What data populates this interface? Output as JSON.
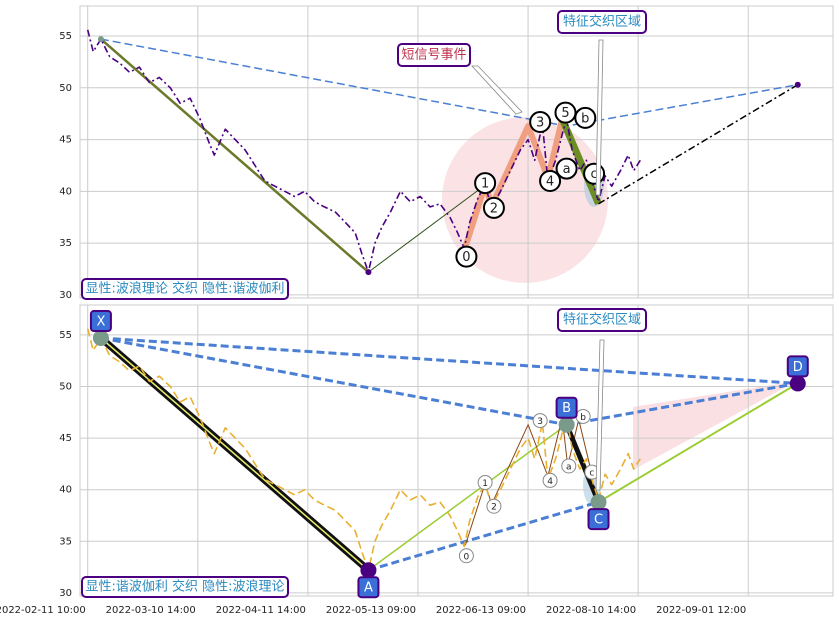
{
  "chart_data": [
    {
      "type": "line",
      "xlim": [
        -7,
        677
      ],
      "ylim": [
        29.7,
        57.9
      ],
      "yticks": [
        30,
        35,
        40,
        45,
        50,
        55
      ],
      "xticks": [
        0,
        100,
        200,
        300,
        400,
        500,
        600
      ],
      "grid": true,
      "series": [
        {
          "color": "#4b0082",
          "style": "dashdot",
          "x": [
            0,
            5,
            12,
            20,
            29,
            38,
            47,
            56,
            65,
            75,
            84,
            93,
            102,
            111,
            115,
            125,
            134,
            143,
            152,
            161,
            170,
            179,
            188,
            197,
            206,
            215,
            225,
            234,
            243,
            249,
            255,
            261,
            267,
            275,
            284,
            293,
            302,
            311,
            320,
            329,
            336,
            342,
            347,
            355,
            361,
            367,
            375,
            384,
            393,
            400,
            406,
            413,
            418,
            425,
            431,
            435,
            440,
            447,
            453,
            458,
            464,
            470,
            476,
            484,
            491,
            496,
            502
          ],
          "values": [
            55.6,
            53.5,
            54.7,
            53,
            52.4,
            51.5,
            52,
            50.5,
            51,
            50,
            48.5,
            49,
            47,
            44.5,
            43.5,
            46,
            45,
            44,
            42.5,
            41,
            40.5,
            40,
            39.5,
            40,
            39,
            38.5,
            38,
            37,
            36,
            34,
            32.2,
            35,
            36.5,
            38,
            40,
            39,
            39.5,
            38.5,
            38.8,
            37.5,
            36,
            34.5,
            37,
            39.5,
            40.5,
            38.5,
            40,
            42,
            44,
            45,
            43,
            46.5,
            41,
            43,
            45.5,
            47,
            44,
            42,
            43,
            41,
            39,
            41.5,
            40.5,
            42,
            43.5,
            42,
            43
          ]
        }
      ],
      "overlays": [
        {
          "color": "#4a7fd4",
          "width": 1.5,
          "style": "dash",
          "x": [
            12,
            435,
            645
          ],
          "y": [
            54.7,
            46.3,
            50.3
          ]
        },
        {
          "color": "#6b7a2a",
          "width": 2.5,
          "x": [
            12,
            255
          ],
          "y": [
            54.7,
            32.2
          ]
        },
        {
          "color": "#2d5016",
          "width": 1,
          "x": [
            255,
            361
          ],
          "y": [
            32.2,
            40.6
          ]
        },
        {
          "color": "#f0a080",
          "width": 6,
          "x": [
            343,
            361,
            367,
            400,
            418,
            431
          ],
          "y": [
            34.6,
            40.6,
            38.6,
            46.3,
            41.3,
            47.0
          ]
        },
        {
          "color": "#6b8e23",
          "width": 7,
          "x": [
            431,
            464
          ],
          "y": [
            47.0,
            38.8
          ]
        },
        {
          "color": "#000000",
          "width": 1.5,
          "style": "dashdot",
          "x": [
            464,
            645
          ],
          "y": [
            38.8,
            50.3
          ]
        }
      ],
      "points": [
        {
          "x": 12,
          "y": 54.7,
          "color": "#7a9a8a"
        },
        {
          "x": 255,
          "y": 32.2,
          "color": "#4b0082"
        },
        {
          "x": 645,
          "y": 50.3,
          "color": "#4b0082"
        }
      ],
      "pivots": [
        {
          "label": "0",
          "x": 344,
          "y": 33.7
        },
        {
          "label": "1",
          "x": 361,
          "y": 40.8
        },
        {
          "label": "2",
          "x": 369,
          "y": 38.4
        },
        {
          "label": "3",
          "x": 411,
          "y": 46.7
        },
        {
          "label": "4",
          "x": 420,
          "y": 41.0
        },
        {
          "label": "5",
          "x": 434,
          "y": 47.6
        },
        {
          "label": "a",
          "x": 435,
          "y": 42.2
        },
        {
          "label": "b",
          "x": 452,
          "y": 47.1
        },
        {
          "label": "c",
          "x": 460,
          "y": 41.7
        }
      ],
      "annotations": [
        "短信号事件",
        "特征交织区域",
        "显性:波浪理论 交织 隐性:谐波伽利"
      ]
    },
    {
      "type": "line",
      "xlim": [
        -7,
        677
      ],
      "ylim": [
        29.7,
        57.9
      ],
      "yticks": [
        30,
        35,
        40,
        45,
        50,
        55
      ],
      "xticks": [
        {
          "value": 0,
          "label": "2022-02-11 10:00"
        },
        {
          "value": 100,
          "label": "2022-03-10 14:00"
        },
        {
          "value": 200,
          "label": "2022-04-11 14:00"
        },
        {
          "value": 300,
          "label": "2022-05-13 09:00"
        },
        {
          "value": 400,
          "label": "2022-06-13 09:00"
        },
        {
          "value": 500,
          "label": "2022-08-10 14:00"
        },
        {
          "value": 600,
          "label": "2022-09-01 12:00"
        }
      ],
      "grid": true,
      "series": [
        {
          "color": "#e8b030",
          "style": "dash",
          "x": [
            0,
            5,
            12,
            20,
            29,
            38,
            47,
            56,
            65,
            75,
            84,
            93,
            102,
            111,
            115,
            125,
            134,
            143,
            152,
            161,
            170,
            179,
            188,
            197,
            206,
            215,
            225,
            234,
            243,
            249,
            255,
            261,
            267,
            275,
            284,
            293,
            302,
            311,
            320,
            329,
            336,
            342,
            347,
            355,
            361,
            367,
            375,
            384,
            393,
            400,
            406,
            413,
            418,
            425,
            431,
            435,
            440,
            447,
            453,
            458,
            464,
            470,
            476,
            484,
            491,
            496,
            502
          ],
          "values": [
            55.6,
            53.5,
            54.7,
            53,
            52.4,
            51.5,
            52,
            50.5,
            51,
            50,
            48.5,
            49,
            47,
            44.5,
            43.5,
            46,
            45,
            44,
            42.5,
            41,
            40.5,
            40,
            39.5,
            40,
            39,
            38.5,
            38,
            37,
            36,
            34,
            32.2,
            35,
            36.5,
            38,
            40,
            39,
            39.5,
            38.5,
            38.8,
            37.5,
            36,
            34.5,
            37,
            39.5,
            40.5,
            38.5,
            40,
            42,
            44,
            45,
            43,
            46.5,
            41,
            43,
            45.5,
            47,
            44,
            42,
            43,
            41,
            39,
            41.5,
            40.5,
            42,
            43.5,
            42,
            43
          ]
        }
      ],
      "overlays": [
        {
          "color": "#111111",
          "width": 7,
          "x": [
            12,
            255
          ],
          "y": [
            54.7,
            32.2
          ]
        },
        {
          "color": "#e8f070",
          "width": 1.5,
          "x": [
            12,
            255
          ],
          "y": [
            54.7,
            32.2
          ]
        },
        {
          "color": "#4a7fd4",
          "width": 3,
          "style": "dash",
          "x": [
            12,
            435
          ],
          "y": [
            54.7,
            46.3
          ]
        },
        {
          "color": "#4a7fd4",
          "width": 3,
          "style": "dash",
          "x": [
            12,
            645
          ],
          "y": [
            54.7,
            50.3
          ]
        },
        {
          "color": "#4a7fd4",
          "width": 3,
          "style": "dash",
          "x": [
            255,
            464
          ],
          "y": [
            32.2,
            38.8
          ]
        },
        {
          "color": "#4a7fd4",
          "width": 3,
          "style": "dash",
          "x": [
            435,
            645
          ],
          "y": [
            46.3,
            50.3
          ]
        },
        {
          "color": "#9acd32",
          "width": 1.5,
          "x": [
            255,
            435
          ],
          "y": [
            32.2,
            46.3
          ]
        },
        {
          "color": "#9acd32",
          "width": 2,
          "x": [
            464,
            645
          ],
          "y": [
            38.8,
            50.3
          ]
        },
        {
          "color": "#8b4513",
          "width": 1,
          "x": [
            343,
            361,
            367,
            400,
            418,
            431,
            436,
            446,
            458
          ],
          "y": [
            34.6,
            40.6,
            38.6,
            46.3,
            41.3,
            47.0,
            42.3,
            46.8,
            41.5
          ]
        },
        {
          "color": "#111111",
          "width": 5,
          "x": [
            435,
            464
          ],
          "y": [
            46.3,
            38.8
          ]
        }
      ],
      "vertices": [
        {
          "label": "X",
          "x": 12,
          "y": 54.7,
          "color": "#7a9a8a"
        },
        {
          "label": "A",
          "x": 255,
          "y": 32.2,
          "color": "#4b0082"
        },
        {
          "label": "B",
          "x": 435,
          "y": 46.3,
          "color": "#7a9a8a"
        },
        {
          "label": "C",
          "x": 464,
          "y": 38.8,
          "color": "#7a9a8a"
        },
        {
          "label": "D",
          "x": 645,
          "y": 50.3,
          "color": "#4b0082"
        }
      ],
      "pivots": [
        {
          "label": "0",
          "x": 344,
          "y": 33.6
        },
        {
          "label": "1",
          "x": 361,
          "y": 40.7
        },
        {
          "label": "2",
          "x": 369,
          "y": 38.4
        },
        {
          "label": "3",
          "x": 411,
          "y": 46.7
        },
        {
          "label": "4",
          "x": 420,
          "y": 40.9
        },
        {
          "label": "a",
          "x": 437,
          "y": 42.3
        },
        {
          "label": "b",
          "x": 450,
          "y": 47.1
        },
        {
          "label": "c",
          "x": 458,
          "y": 41.7
        }
      ],
      "annotations": [
        "特征交织区域",
        "显性:谐波伽利 交织 隐性:波浪理论"
      ]
    }
  ]
}
